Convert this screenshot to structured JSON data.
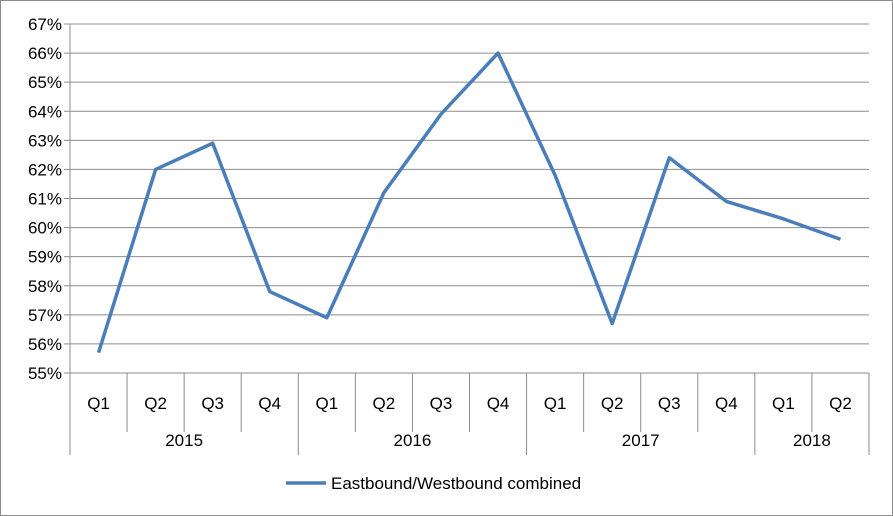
{
  "chart_data": {
    "type": "line",
    "title": "",
    "xlabel": "",
    "ylabel": "",
    "categories": [
      {
        "quarter": "Q1",
        "year": "2015"
      },
      {
        "quarter": "Q2",
        "year": "2015"
      },
      {
        "quarter": "Q3",
        "year": "2015"
      },
      {
        "quarter": "Q4",
        "year": "2015"
      },
      {
        "quarter": "Q1",
        "year": "2016"
      },
      {
        "quarter": "Q2",
        "year": "2016"
      },
      {
        "quarter": "Q3",
        "year": "2016"
      },
      {
        "quarter": "Q4",
        "year": "2016"
      },
      {
        "quarter": "Q1",
        "year": "2017"
      },
      {
        "quarter": "Q2",
        "year": "2017"
      },
      {
        "quarter": "Q3",
        "year": "2017"
      },
      {
        "quarter": "Q4",
        "year": "2017"
      },
      {
        "quarter": "Q1",
        "year": "2018"
      },
      {
        "quarter": "Q2",
        "year": "2018"
      }
    ],
    "years": [
      {
        "label": "2015",
        "count": 4
      },
      {
        "label": "2016",
        "count": 4
      },
      {
        "label": "2017",
        "count": 4
      },
      {
        "label": "2018",
        "count": 2
      }
    ],
    "series": [
      {
        "name": "Eastbound/Westbound combined",
        "color": "#4a7ebb",
        "values": [
          55.7,
          62.0,
          62.9,
          57.8,
          56.9,
          61.2,
          63.9,
          66.0,
          61.8,
          56.7,
          62.4,
          60.9,
          60.3,
          59.6
        ]
      }
    ],
    "ylim": [
      55,
      67
    ],
    "ytick_step": 1,
    "ytick_format": "percent",
    "grid": true,
    "legend_position": "bottom"
  }
}
